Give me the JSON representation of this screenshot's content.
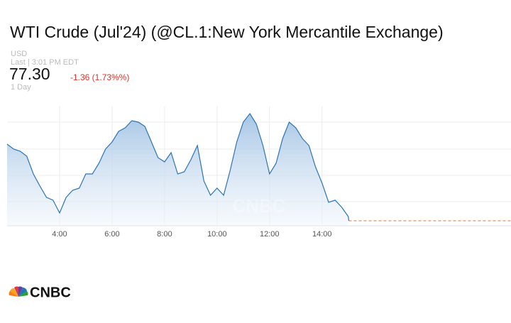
{
  "chart_data": {
    "type": "line",
    "title": "WTI Crude (Jul'24) (@CL.1:New York Mercantile Exchange)",
    "currency": "USD",
    "last_time": "Last | 3:01 PM EDT",
    "last_price": "77.30",
    "change": "-1.36 (1.73%%)",
    "period": "1 Day",
    "logo": "CNBC",
    "x": [
      2,
      2.25,
      2.5,
      2.75,
      3,
      3.25,
      3.5,
      3.75,
      4,
      4.25,
      4.5,
      4.75,
      5,
      5.25,
      5.5,
      5.75,
      6,
      6.25,
      6.5,
      6.75,
      7,
      7.25,
      7.5,
      7.75,
      8,
      8.25,
      8.5,
      8.75,
      9,
      9.25,
      9.5,
      9.75,
      10,
      10.25,
      10.5,
      10.75,
      11,
      11.25,
      11.5,
      11.75,
      12,
      12.25,
      12.5,
      12.75,
      13,
      13.25,
      13.5,
      13.75,
      14,
      14.25,
      14.5,
      14.75,
      15,
      15.02
    ],
    "series": [
      {
        "name": "WTI Crude",
        "color": "#2b74b3",
        "values": [
          78.38,
          78.31,
          78.28,
          78.21,
          77.96,
          77.79,
          77.63,
          77.59,
          77.41,
          77.63,
          77.73,
          77.76,
          77.96,
          77.96,
          78.11,
          78.31,
          78.41,
          78.56,
          78.61,
          78.71,
          78.69,
          78.63,
          78.41,
          78.19,
          78.13,
          78.26,
          77.96,
          77.99,
          78.16,
          78.36,
          77.86,
          77.66,
          77.76,
          77.66,
          78.01,
          78.41,
          78.69,
          78.81,
          78.66,
          78.36,
          77.96,
          78.11,
          78.46,
          78.69,
          78.61,
          78.46,
          78.36,
          78.06,
          77.83,
          77.56,
          77.59,
          77.49,
          77.36,
          77.3
        ]
      }
    ],
    "xlim": [
      2,
      21.2
    ],
    "ylim": [
      77.23,
      78.91
    ],
    "xticks": [
      {
        "value": 4,
        "label": "4:00"
      },
      {
        "value": 6,
        "label": "6:00"
      },
      {
        "value": 8,
        "label": "8:00"
      },
      {
        "value": 10,
        "label": "10:00"
      },
      {
        "value": 12,
        "label": "12:00"
      },
      {
        "value": 14,
        "label": "14:00"
      }
    ],
    "grid": true
  }
}
